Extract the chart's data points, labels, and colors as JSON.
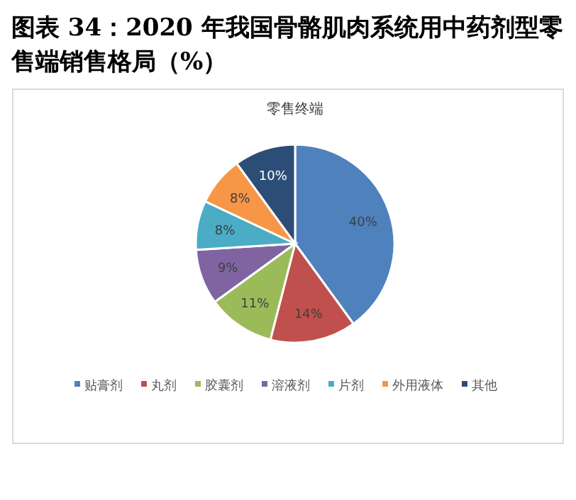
{
  "chart_data": {
    "type": "pie",
    "title": "图表 34：2020 年我国骨骼肌肉系统用中药剂型零售端销售格局（%）",
    "subtitle": "零售终端",
    "categories": [
      "贴膏剂",
      "丸剂",
      "胶囊剂",
      "溶液剂",
      "片剂",
      "外用液体",
      "其他"
    ],
    "values": [
      40,
      14,
      11,
      9,
      8,
      8,
      10
    ],
    "colors": [
      "#4f81bd",
      "#c0504d",
      "#9bbb59",
      "#8064a2",
      "#4bacc6",
      "#f79646",
      "#2c4d75"
    ],
    "value_labels": [
      "40%",
      "14%",
      "11%",
      "9%",
      "8%",
      "8%",
      "10%"
    ],
    "legend": "bottom"
  }
}
